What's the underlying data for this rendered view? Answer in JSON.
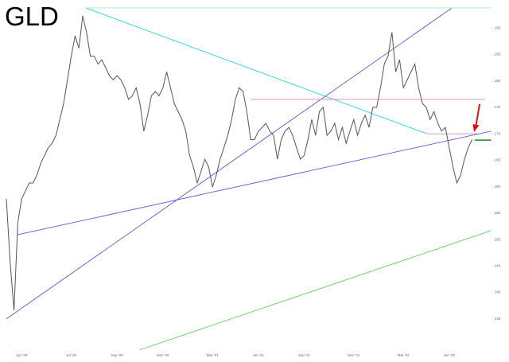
{
  "chart_data": {
    "type": "line",
    "title": "GLD",
    "series": [
      {
        "color": "#555555",
        "values": [
          157.7,
          145.6,
          136.6,
          153.2,
          157.7,
          159.2,
          160.7,
          160.7,
          162.2,
          164.4,
          165.9,
          167.4,
          168.2,
          169.7,
          172.7,
          175.7,
          180.2,
          184.7,
          188.5,
          186.2,
          192.3,
          189.2,
          184.7,
          184.7,
          183.2,
          184.0,
          182.5,
          181.0,
          180.2,
          181.0,
          180.2,
          178.7,
          176.5,
          177.2,
          178.7,
          175.7,
          170.5,
          173.5,
          177.2,
          178.0,
          177.2,
          178.7,
          181.7,
          178.7,
          175.7,
          174.2,
          172.7,
          170.5,
          165.9,
          163.7,
          160.7,
          162.9,
          165.2,
          163.7,
          159.9,
          162.2,
          165.2,
          167.4,
          169.7,
          172.7,
          176.5,
          178.7,
          178.0,
          174.2,
          168.9,
          168.9,
          170.5,
          171.2,
          172.0,
          170.5,
          169.7,
          165.2,
          168.9,
          170.5,
          171.2,
          169.7,
          167.4,
          165.2,
          165.9,
          168.9,
          172.7,
          169.7,
          174.2,
          175.0,
          169.7,
          170.5,
          172.0,
          168.9,
          171.2,
          168.2,
          170.5,
          172.7,
          169.7,
          172.0,
          173.5,
          171.2,
          175.0,
          175.0,
          178.7,
          183.2,
          184.7,
          189.2,
          181.7,
          184.0,
          178.7,
          180.2,
          181.7,
          183.2,
          178.7,
          175.7,
          175.0,
          172.7,
          174.2,
          172.0,
          170.5,
          171.2,
          167.4,
          163.7,
          160.7,
          162.2,
          165.2,
          167.4,
          168.9
        ]
      }
    ],
    "xlim": [
      0,
      127
    ],
    "xticks": [
      {
        "value": 4,
        "label": "Apr '20"
      },
      {
        "value": 17,
        "label": "Jul '20"
      },
      {
        "value": 29,
        "label": "Sep '20"
      },
      {
        "value": 41,
        "label": "Dec '20"
      },
      {
        "value": 54,
        "label": "Mar '21"
      },
      {
        "value": 66,
        "label": "Jun '21"
      },
      {
        "value": 78,
        "label": "Sep '21"
      },
      {
        "value": 91,
        "label": "Dec '21"
      },
      {
        "value": 104,
        "label": "Mar '22"
      },
      {
        "value": 116,
        "label": "Jun '22"
      }
    ],
    "ylim": [
      129.1,
      195.3
    ],
    "yticks": [
      135,
      140,
      145,
      150,
      155,
      160,
      165,
      170,
      175,
      180,
      185,
      190
    ],
    "trendlines": [
      {
        "color": "#2ad4e0",
        "points": [
          [
            20.8,
            193.8
          ],
          [
            110.2,
            170.0
          ]
        ]
      },
      {
        "color": "#d98aa8",
        "points": [
          [
            110.2,
            170.0
          ],
          [
            123.3,
            170.0
          ]
        ]
      },
      {
        "color": "#5b57d6",
        "points": [
          [
            0,
            135.0
          ],
          [
            116.7,
            193.8
          ]
        ]
      },
      {
        "color": "#5b57d6",
        "points": [
          [
            2.9,
            150.9
          ],
          [
            127,
            170.5
          ]
        ]
      },
      {
        "color": "#d98aa8",
        "points": [
          [
            64,
            176.5
          ],
          [
            125.4,
            176.5
          ]
        ]
      },
      {
        "color": "#1a8a1a",
        "points": [
          [
            122.7,
            168.8
          ],
          [
            127,
            168.8
          ]
        ]
      },
      {
        "color": "#5fd45f",
        "points": [
          [
            34.8,
            129.1
          ],
          [
            127,
            151.7
          ]
        ]
      },
      {
        "color": "#a8e8c8",
        "points": [
          [
            20.8,
            193.8
          ],
          [
            127,
            193.8
          ]
        ]
      }
    ]
  }
}
